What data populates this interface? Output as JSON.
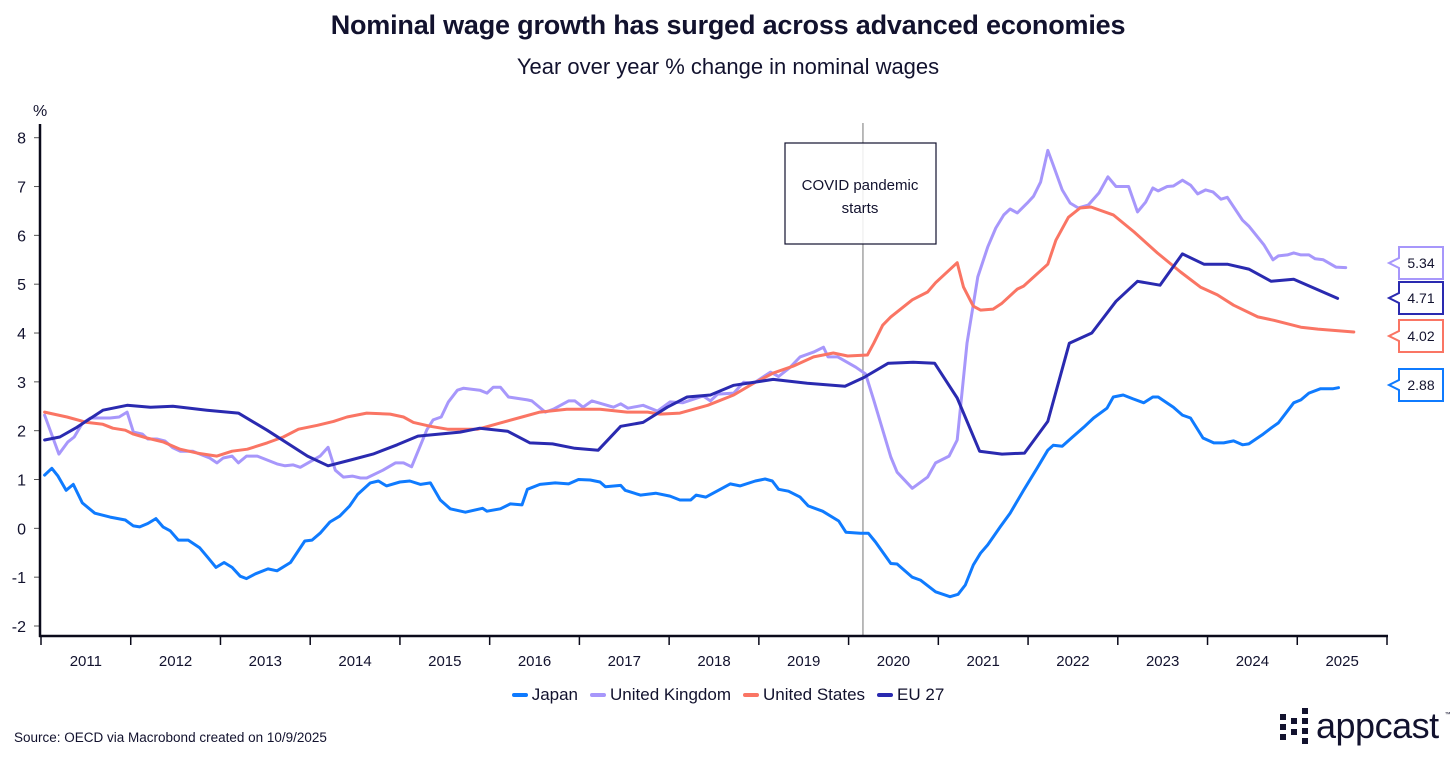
{
  "header": {
    "title": "Nominal wage growth has surged across advanced economies",
    "subtitle": "Year over year % change in nominal wages"
  },
  "footer": {
    "source": "Source: OECD via Macrobond created on 10/9/2025",
    "logo_text": "appcast",
    "logo_tm": "™"
  },
  "chart_data": {
    "type": "line",
    "title": "Nominal wage growth has surged across advanced economies",
    "subtitle": "Year over year % change in nominal wages",
    "ylabel": "%",
    "xlabel": "",
    "ylim": [
      -2,
      8
    ],
    "xlim": [
      2011,
      2026
    ],
    "yticks": [
      "-2",
      "-1",
      "0",
      "1",
      "2",
      "3",
      "4",
      "5",
      "6",
      "7",
      "8"
    ],
    "xtick_labels": [
      "2011",
      "2012",
      "2013",
      "2014",
      "2015",
      "2016",
      "2017",
      "2018",
      "2019",
      "2020",
      "2021",
      "2022",
      "2023",
      "2024",
      "2025"
    ],
    "grid": false,
    "legend_position": "bottom-center",
    "annotation": {
      "text_line1": "COVID pandemic",
      "text_line2": "starts",
      "x": 2020.16
    },
    "series": [
      {
        "name": "Japan",
        "color": "#0f7bff",
        "end_label": "2.88",
        "x": [
          2011.04,
          2011.12,
          2011.19,
          2011.28,
          2011.36,
          2011.46,
          2011.6,
          2011.77,
          2011.94,
          2012.03,
          2012.1,
          2012.19,
          2012.28,
          2012.36,
          2012.44,
          2012.53,
          2012.64,
          2012.77,
          2012.86,
          2012.95,
          2013.04,
          2013.13,
          2013.22,
          2013.29,
          2013.39,
          2013.53,
          2013.63,
          2013.78,
          2013.94,
          2014.02,
          2014.11,
          2014.22,
          2014.33,
          2014.44,
          2014.53,
          2014.67,
          2014.76,
          2014.85,
          2015.0,
          2015.11,
          2015.23,
          2015.34,
          2015.45,
          2015.56,
          2015.73,
          2015.92,
          2015.97,
          2016.12,
          2016.23,
          2016.36,
          2016.42,
          2016.56,
          2016.73,
          2016.88,
          2016.99,
          2017.12,
          2017.23,
          2017.29,
          2017.46,
          2017.51,
          2017.68,
          2017.85,
          2018.01,
          2018.12,
          2018.24,
          2018.3,
          2018.41,
          2018.57,
          2018.68,
          2018.79,
          2018.96,
          2019.07,
          2019.15,
          2019.22,
          2019.33,
          2019.46,
          2019.55,
          2019.71,
          2019.89,
          2019.97,
          2020.13,
          2020.22,
          2020.3,
          2020.47,
          2020.54,
          2020.71,
          2020.8,
          2020.97,
          2021.13,
          2021.22,
          2021.3,
          2021.39,
          2021.47,
          2021.55,
          2021.69,
          2021.8,
          2021.95,
          2022.1,
          2022.22,
          2022.28,
          2022.38,
          2022.49,
          2022.62,
          2022.73,
          2022.88,
          2022.95,
          2023.06,
          2023.17,
          2023.29,
          2023.39,
          2023.45,
          2023.62,
          2023.72,
          2023.81,
          2023.95,
          2024.07,
          2024.18,
          2024.29,
          2024.39,
          2024.46,
          2024.62,
          2024.72,
          2024.79,
          2024.96,
          2025.04,
          2025.13,
          2025.26,
          2025.4,
          2025.46
        ],
        "y": [
          1.09,
          1.23,
          1.07,
          0.78,
          0.9,
          0.52,
          0.31,
          0.23,
          0.17,
          0.05,
          0.03,
          0.1,
          0.2,
          0.03,
          -0.05,
          -0.24,
          -0.24,
          -0.4,
          -0.6,
          -0.8,
          -0.7,
          -0.8,
          -0.98,
          -1.03,
          -0.93,
          -0.83,
          -0.87,
          -0.7,
          -0.26,
          -0.24,
          -0.1,
          0.13,
          0.25,
          0.46,
          0.7,
          0.93,
          0.97,
          0.87,
          0.95,
          0.97,
          0.9,
          0.93,
          0.58,
          0.4,
          0.33,
          0.41,
          0.35,
          0.4,
          0.5,
          0.48,
          0.8,
          0.9,
          0.93,
          0.91,
          1.0,
          0.99,
          0.95,
          0.85,
          0.88,
          0.78,
          0.68,
          0.72,
          0.66,
          0.58,
          0.58,
          0.68,
          0.64,
          0.8,
          0.91,
          0.87,
          0.97,
          1.01,
          0.97,
          0.8,
          0.76,
          0.64,
          0.46,
          0.35,
          0.15,
          -0.08,
          -0.1,
          -0.1,
          -0.28,
          -0.72,
          -0.73,
          -1.0,
          -1.06,
          -1.3,
          -1.4,
          -1.35,
          -1.16,
          -0.75,
          -0.51,
          -0.34,
          0.03,
          0.31,
          0.78,
          1.23,
          1.6,
          1.7,
          1.68,
          1.86,
          2.07,
          2.26,
          2.46,
          2.69,
          2.73,
          2.65,
          2.57,
          2.69,
          2.69,
          2.48,
          2.32,
          2.26,
          1.85,
          1.75,
          1.75,
          1.79,
          1.71,
          1.73,
          1.93,
          2.07,
          2.16,
          2.57,
          2.63,
          2.77,
          2.86,
          2.86,
          2.88
        ]
      },
      {
        "name": "United Kingdom",
        "color": "#a797fb",
        "end_label": "5.34",
        "x": [
          2011.04,
          2011.2,
          2011.3,
          2011.37,
          2011.46,
          2011.55,
          2011.77,
          2011.87,
          2011.96,
          2012.03,
          2012.13,
          2012.19,
          2012.29,
          2012.38,
          2012.47,
          2012.55,
          2012.69,
          2012.88,
          2012.96,
          2013.03,
          2013.13,
          2013.2,
          2013.29,
          2013.41,
          2013.63,
          2013.72,
          2013.81,
          2013.89,
          2014.11,
          2014.2,
          2014.28,
          2014.37,
          2014.47,
          2014.56,
          2014.63,
          2014.81,
          2014.95,
          2015.04,
          2015.13,
          2015.3,
          2015.37,
          2015.46,
          2015.54,
          2015.64,
          2015.71,
          2015.89,
          2015.97,
          2016.04,
          2016.12,
          2016.21,
          2016.42,
          2016.47,
          2016.62,
          2016.71,
          2016.88,
          2016.95,
          2017.04,
          2017.14,
          2017.38,
          2017.46,
          2017.54,
          2017.71,
          2017.87,
          2018.01,
          2018.15,
          2018.38,
          2018.46,
          2018.54,
          2018.72,
          2018.83,
          2018.94,
          2019.13,
          2019.22,
          2019.35,
          2019.46,
          2019.61,
          2019.72,
          2019.77,
          2019.88,
          2020.08,
          2020.19,
          2020.28,
          2020.47,
          2020.54,
          2020.71,
          2020.88,
          2020.97,
          2021.12,
          2021.21,
          2021.32,
          2021.44,
          2021.55,
          2021.64,
          2021.73,
          2021.8,
          2021.88,
          2021.99,
          2022.06,
          2022.14,
          2022.22,
          2022.28,
          2022.38,
          2022.47,
          2022.56,
          2022.67,
          2022.79,
          2022.89,
          2022.98,
          2023.12,
          2023.22,
          2023.31,
          2023.39,
          2023.45,
          2023.55,
          2023.62,
          2023.72,
          2023.81,
          2023.89,
          2023.98,
          2024.06,
          2024.15,
          2024.22,
          2024.39,
          2024.46,
          2024.63,
          2024.73,
          2024.79,
          2024.89,
          2024.96,
          2025.04,
          2025.13,
          2025.2,
          2025.29,
          2025.43,
          2025.54
        ],
        "y": [
          2.32,
          1.52,
          1.77,
          1.87,
          2.15,
          2.26,
          2.26,
          2.28,
          2.38,
          1.97,
          1.93,
          1.83,
          1.83,
          1.79,
          1.65,
          1.58,
          1.58,
          1.44,
          1.34,
          1.44,
          1.48,
          1.34,
          1.48,
          1.48,
          1.32,
          1.28,
          1.3,
          1.25,
          1.48,
          1.66,
          1.19,
          1.05,
          1.07,
          1.03,
          1.03,
          1.19,
          1.34,
          1.34,
          1.26,
          2.02,
          2.22,
          2.28,
          2.59,
          2.83,
          2.87,
          2.83,
          2.77,
          2.89,
          2.89,
          2.69,
          2.63,
          2.61,
          2.38,
          2.44,
          2.61,
          2.61,
          2.48,
          2.61,
          2.48,
          2.55,
          2.46,
          2.52,
          2.4,
          2.59,
          2.57,
          2.71,
          2.61,
          2.75,
          2.77,
          2.99,
          2.97,
          3.2,
          3.11,
          3.3,
          3.51,
          3.61,
          3.71,
          3.51,
          3.51,
          3.3,
          3.16,
          2.63,
          1.46,
          1.15,
          0.82,
          1.05,
          1.34,
          1.48,
          1.81,
          3.79,
          5.15,
          5.76,
          6.15,
          6.42,
          6.54,
          6.46,
          6.66,
          6.8,
          7.09,
          7.74,
          7.44,
          6.93,
          6.66,
          6.56,
          6.62,
          6.87,
          7.2,
          7.0,
          7.0,
          6.48,
          6.68,
          6.97,
          6.91,
          7.0,
          7.01,
          7.13,
          7.03,
          6.85,
          6.93,
          6.89,
          6.74,
          6.78,
          6.31,
          6.19,
          5.8,
          5.5,
          5.58,
          5.6,
          5.64,
          5.6,
          5.6,
          5.52,
          5.5,
          5.35,
          5.34
        ]
      },
      {
        "name": "United States",
        "color": "#fa7564",
        "end_label": "4.02",
        "x": [
          2011.04,
          2011.29,
          2011.51,
          2011.69,
          2011.8,
          2011.94,
          2012.03,
          2012.18,
          2012.36,
          2012.55,
          2012.74,
          2012.96,
          2013.13,
          2013.3,
          2013.52,
          2013.7,
          2013.87,
          2014.08,
          2014.26,
          2014.41,
          2014.63,
          2014.89,
          2015.04,
          2015.15,
          2015.34,
          2015.53,
          2015.87,
          2016.14,
          2016.36,
          2016.56,
          2016.86,
          2017.23,
          2017.53,
          2017.76,
          2017.9,
          2018.12,
          2018.43,
          2018.72,
          2018.94,
          2019.16,
          2019.38,
          2019.61,
          2019.83,
          2019.99,
          2020.21,
          2020.28,
          2020.38,
          2020.47,
          2020.71,
          2020.88,
          2020.97,
          2021.21,
          2021.28,
          2021.39,
          2021.47,
          2021.61,
          2021.71,
          2021.88,
          2021.95,
          2022.22,
          2022.31,
          2022.45,
          2022.58,
          2022.7,
          2022.95,
          2023.18,
          2023.44,
          2023.7,
          2023.92,
          2024.11,
          2024.29,
          2024.56,
          2024.74,
          2025.04,
          2025.23,
          2025.63
        ],
        "y": [
          2.38,
          2.28,
          2.17,
          2.13,
          2.05,
          2.01,
          1.93,
          1.85,
          1.77,
          1.62,
          1.54,
          1.48,
          1.58,
          1.62,
          1.75,
          1.87,
          2.03,
          2.11,
          2.19,
          2.28,
          2.36,
          2.34,
          2.28,
          2.17,
          2.09,
          2.03,
          2.03,
          2.17,
          2.28,
          2.38,
          2.44,
          2.44,
          2.38,
          2.38,
          2.34,
          2.36,
          2.52,
          2.73,
          2.97,
          3.18,
          3.32,
          3.51,
          3.59,
          3.53,
          3.55,
          3.79,
          4.16,
          4.33,
          4.68,
          4.84,
          5.03,
          5.44,
          4.94,
          4.55,
          4.47,
          4.49,
          4.61,
          4.9,
          4.96,
          5.41,
          5.9,
          6.37,
          6.56,
          6.58,
          6.42,
          6.07,
          5.64,
          5.25,
          4.94,
          4.78,
          4.57,
          4.33,
          4.26,
          4.12,
          4.08,
          4.02
        ]
      },
      {
        "name": "EU 27",
        "color": "#2a2ab0",
        "end_label": "4.71",
        "x": [
          2011.04,
          2011.21,
          2011.4,
          2011.69,
          2011.96,
          2012.22,
          2012.47,
          2012.85,
          2013.2,
          2013.52,
          2013.97,
          2014.2,
          2014.45,
          2014.7,
          2014.97,
          2015.2,
          2015.67,
          2015.89,
          2016.2,
          2016.45,
          2016.7,
          2016.95,
          2017.21,
          2017.46,
          2017.71,
          2017.98,
          2018.2,
          2018.46,
          2018.72,
          2019.16,
          2019.54,
          2019.96,
          2020.17,
          2020.44,
          2020.72,
          2020.96,
          2021.21,
          2021.46,
          2021.71,
          2021.96,
          2022.22,
          2022.46,
          2022.71,
          2022.98,
          2023.22,
          2023.47,
          2023.72,
          2023.96,
          2024.22,
          2024.46,
          2024.71,
          2024.96,
          2025.45
        ],
        "y": [
          1.81,
          1.87,
          2.07,
          2.42,
          2.52,
          2.48,
          2.5,
          2.42,
          2.36,
          2.01,
          1.48,
          1.28,
          1.4,
          1.52,
          1.71,
          1.89,
          1.97,
          2.05,
          1.99,
          1.75,
          1.73,
          1.64,
          1.6,
          2.09,
          2.17,
          2.48,
          2.69,
          2.73,
          2.93,
          3.05,
          2.97,
          2.91,
          3.09,
          3.38,
          3.4,
          3.38,
          2.67,
          1.58,
          1.52,
          1.54,
          2.19,
          3.79,
          4.0,
          4.65,
          5.06,
          4.98,
          5.62,
          5.41,
          5.41,
          5.31,
          5.06,
          5.1,
          4.71
        ]
      }
    ]
  }
}
